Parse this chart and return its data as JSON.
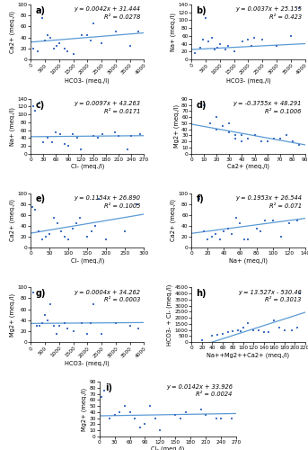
{
  "subplots": [
    {
      "label": "a)",
      "xlabel": "HCO3- (meq./l)",
      "ylabel": "Ca2+ (meq./l)",
      "equation": "y = 0.0042x + 31.444",
      "r2": "R² = 0.0278",
      "xlim": [
        0,
        4000
      ],
      "ylim": [
        0,
        100
      ],
      "xticks": [
        0,
        500,
        1000,
        1500,
        2000,
        2500,
        3000,
        3500,
        4000
      ],
      "yticks": [
        0,
        20,
        40,
        60,
        80,
        100
      ],
      "slope": 0.0042,
      "intercept": 31.444,
      "xdata": [
        100,
        250,
        350,
        400,
        500,
        600,
        700,
        800,
        900,
        1000,
        1200,
        1300,
        1500,
        1800,
        2000,
        2100,
        2200,
        2500,
        3000,
        3500,
        3800
      ],
      "ydata": [
        20,
        15,
        90,
        75,
        35,
        45,
        40,
        20,
        25,
        30,
        20,
        15,
        10,
        45,
        45,
        35,
        65,
        30,
        50,
        25,
        50
      ]
    },
    {
      "label": "b)",
      "xlabel": "HCO3- (meq./l)",
      "ylabel": "Na+ (meq./l)",
      "equation": "y = 0.0037x + 25.155",
      "r2": "R² = 0.423",
      "xlim": [
        0,
        4000
      ],
      "ylim": [
        0,
        140
      ],
      "xticks": [
        0,
        500,
        1000,
        1500,
        2000,
        2500,
        3000,
        3500,
        4000
      ],
      "yticks": [
        0,
        20,
        40,
        60,
        80,
        100,
        120,
        140
      ],
      "slope": 0.0037,
      "intercept": 25.155,
      "xdata": [
        100,
        300,
        400,
        500,
        600,
        700,
        800,
        900,
        1000,
        1200,
        1300,
        1500,
        1800,
        2000,
        2100,
        2200,
        2500,
        3000,
        3500,
        3800
      ],
      "ydata": [
        15,
        30,
        50,
        105,
        45,
        55,
        25,
        30,
        40,
        25,
        35,
        20,
        45,
        50,
        35,
        55,
        50,
        35,
        60,
        130
      ]
    },
    {
      "label": "c)",
      "xlabel": "Cl- (meq./l)",
      "ylabel": "Na+ (meq./l)",
      "equation": "y = 0.0097x + 43.263",
      "r2": "R² = 0.0171",
      "xlim": [
        0,
        270
      ],
      "ylim": [
        0,
        140
      ],
      "xticks": [
        0,
        30,
        60,
        90,
        120,
        150,
        180,
        210,
        240,
        270
      ],
      "yticks": [
        0,
        20,
        40,
        60,
        80,
        100,
        120,
        140
      ],
      "slope": 0.0097,
      "intercept": 43.263,
      "xdata": [
        5,
        10,
        20,
        30,
        40,
        50,
        60,
        70,
        80,
        90,
        100,
        110,
        120,
        150,
        160,
        170,
        200,
        210,
        230,
        240,
        260
      ],
      "ydata": [
        120,
        110,
        130,
        30,
        40,
        30,
        55,
        50,
        25,
        20,
        50,
        40,
        10,
        45,
        40,
        50,
        55,
        45,
        10,
        45,
        50
      ]
    },
    {
      "label": "d)",
      "xlabel": "Ca2+ (meq./l)",
      "ylabel": "Mg2+ (meq./l)",
      "equation": "y = -0.3755x + 48.291",
      "r2": "R² = 0.1006",
      "xlim": [
        0,
        90
      ],
      "ylim": [
        0,
        90
      ],
      "xticks": [
        0,
        10,
        20,
        30,
        40,
        50,
        60,
        70,
        80,
        90
      ],
      "yticks": [
        0,
        10,
        20,
        30,
        40,
        50,
        60,
        70,
        80,
        90
      ],
      "slope": -0.3755,
      "intercept": 48.291,
      "xdata": [
        10,
        15,
        20,
        20,
        25,
        30,
        30,
        35,
        35,
        40,
        40,
        45,
        50,
        55,
        60,
        65,
        70,
        75,
        80,
        85
      ],
      "ydata": [
        80,
        50,
        60,
        40,
        45,
        50,
        35,
        30,
        25,
        30,
        20,
        25,
        30,
        20,
        20,
        25,
        25,
        30,
        20,
        15
      ]
    },
    {
      "label": "e)",
      "xlabel": "Cl- (meq./l)",
      "ylabel": "Ca2+ (meq./l)",
      "equation": "y = 0.1154x + 26.890",
      "r2": "R² = 0.1005",
      "xlim": [
        0,
        300
      ],
      "ylim": [
        0,
        100
      ],
      "xticks": [
        0,
        50,
        100,
        150,
        200,
        250,
        300
      ],
      "yticks": [
        0,
        20,
        40,
        60,
        80,
        100
      ],
      "slope": 0.1154,
      "intercept": 26.89,
      "xdata": [
        5,
        10,
        20,
        30,
        40,
        50,
        60,
        70,
        80,
        90,
        100,
        110,
        120,
        130,
        150,
        160,
        170,
        180,
        200,
        250,
        280
      ],
      "ydata": [
        75,
        70,
        30,
        15,
        20,
        25,
        55,
        45,
        30,
        20,
        15,
        35,
        45,
        55,
        20,
        30,
        40,
        90,
        15,
        30,
        80
      ]
    },
    {
      "label": "f)",
      "xlabel": "Na+ (meq./l)",
      "ylabel": "Ca2+ (meq./l)",
      "equation": "y = 0.1953x + 26.544",
      "r2": "R² = 0.071",
      "xlim": [
        0,
        140
      ],
      "ylim": [
        0,
        100
      ],
      "xticks": [
        0,
        20,
        40,
        60,
        80,
        100,
        120,
        140
      ],
      "yticks": [
        0,
        20,
        40,
        60,
        80,
        100
      ],
      "slope": 0.1953,
      "intercept": 26.544,
      "xdata": [
        10,
        15,
        20,
        25,
        30,
        35,
        40,
        45,
        50,
        55,
        60,
        65,
        70,
        80,
        85,
        90,
        100,
        110,
        120,
        130
      ],
      "ydata": [
        90,
        30,
        15,
        20,
        25,
        15,
        30,
        35,
        25,
        55,
        45,
        15,
        15,
        35,
        30,
        50,
        50,
        20,
        45,
        50
      ]
    },
    {
      "label": "g)",
      "xlabel": "HCO3- (meq./l)",
      "ylabel": "Mg2+ (meq./l)",
      "equation": "y = 0.0004x + 34.262",
      "r2": "R² = 0.0003",
      "xlim": [
        0,
        4000
      ],
      "ylim": [
        0,
        100
      ],
      "xticks": [
        0,
        500,
        1000,
        1500,
        2000,
        2500,
        3000,
        3500,
        4000
      ],
      "yticks": [
        0,
        20,
        40,
        60,
        80,
        100
      ],
      "slope": 0.0004,
      "intercept": 34.262,
      "xdata": [
        100,
        200,
        300,
        400,
        500,
        600,
        700,
        800,
        900,
        1000,
        1200,
        1300,
        1500,
        1800,
        2000,
        2100,
        2200,
        2500,
        3000,
        3500,
        3800
      ],
      "ydata": [
        90,
        30,
        30,
        35,
        50,
        40,
        70,
        30,
        15,
        30,
        35,
        25,
        20,
        35,
        15,
        35,
        70,
        15,
        35,
        30,
        25
      ]
    },
    {
      "label": "h)",
      "xlabel": "Na++Mg2++Ca2+ (meq./l)",
      "ylabel": "HCO3- + Cl- (meq./l)",
      "equation": "y = 13.527x - 530.46",
      "r2": "R² = 0.3013",
      "xlim": [
        0,
        220
      ],
      "ylim": [
        0,
        4500
      ],
      "xticks": [
        0,
        20,
        40,
        60,
        80,
        100,
        120,
        140,
        160,
        180,
        200,
        220
      ],
      "yticks": [
        0,
        500,
        1000,
        1500,
        2000,
        2500,
        3000,
        3500,
        4000,
        4500
      ],
      "slope": 13.527,
      "intercept": -530.46,
      "xdata": [
        20,
        40,
        50,
        60,
        70,
        80,
        90,
        95,
        100,
        110,
        120,
        130,
        140,
        150,
        160,
        170,
        180,
        195,
        205,
        210
      ],
      "ydata": [
        200,
        500,
        600,
        700,
        800,
        900,
        1000,
        900,
        1200,
        1600,
        1000,
        1000,
        800,
        800,
        1800,
        1200,
        1000,
        1000,
        1200,
        4000
      ]
    },
    {
      "label": "i)",
      "xlabel": "Cl- (meq./l)",
      "ylabel": "Mg2+ (meq./l)",
      "equation": "y = 0.0142x + 33.926",
      "r2": "R² = 0.0024",
      "xlim": [
        0,
        270
      ],
      "ylim": [
        0,
        90
      ],
      "xticks": [
        0,
        30,
        60,
        90,
        120,
        150,
        180,
        210,
        240,
        270
      ],
      "yticks": [
        0,
        10,
        20,
        30,
        40,
        50,
        60,
        70,
        80,
        90
      ],
      "slope": 0.0142,
      "intercept": 33.926,
      "xdata": [
        5,
        10,
        20,
        30,
        40,
        50,
        60,
        70,
        80,
        90,
        100,
        110,
        120,
        150,
        160,
        170,
        200,
        210,
        230,
        240,
        260
      ],
      "ydata": [
        65,
        75,
        30,
        35,
        40,
        50,
        40,
        30,
        15,
        20,
        50,
        30,
        10,
        35,
        30,
        40,
        45,
        35,
        30,
        30,
        30
      ]
    }
  ],
  "point_color": "#4472C4",
  "line_color": "#5B9BD5",
  "marker": "s",
  "marker_size": 3,
  "eq_fontsize": 4.8,
  "label_fontsize": 4.8,
  "tick_fontsize": 4.2,
  "subplot_label_fontsize": 7
}
